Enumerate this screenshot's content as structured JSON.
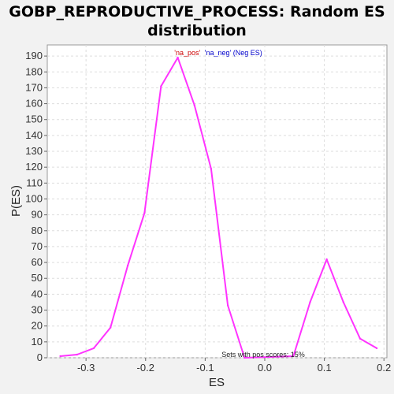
{
  "chart_data": {
    "type": "line",
    "title_line1": "GOBP_REPRODUCTIVE_PROCESS: Random ES",
    "title_line2": "distribution",
    "xlabel": "ES",
    "ylabel": "P(ES)",
    "xlim": [
      -0.365,
      0.205
    ],
    "ylim": [
      0,
      197
    ],
    "x_ticks": [
      -0.3,
      -0.2,
      -0.1,
      0.0,
      0.1,
      0.2
    ],
    "x_tick_labels": [
      "-0.3",
      "-0.2",
      "-0.1",
      "0.0",
      "0.1",
      "0.2"
    ],
    "y_ticks": [
      0,
      10,
      20,
      30,
      40,
      50,
      60,
      70,
      80,
      90,
      100,
      110,
      120,
      130,
      140,
      150,
      160,
      170,
      180,
      190
    ],
    "grid": true,
    "legend": {
      "placement": "top-center",
      "pos_label": "'na_pos'",
      "neg_label": "'na_neg' (Neg ES)",
      "pos_color": "#cc0000",
      "neg_color": "#0000cc"
    },
    "annotation": "Sets with pos scores: 15%",
    "line_color": "#ff33ff",
    "series": [
      {
        "x": [
          -0.343,
          -0.315,
          -0.287,
          -0.259,
          -0.23,
          -0.202,
          -0.174,
          -0.146,
          -0.118,
          -0.09,
          -0.062,
          -0.034,
          0.048,
          0.076,
          0.104,
          0.132,
          0.16,
          0.188
        ],
        "y": [
          1,
          2,
          6,
          19,
          58,
          91,
          171,
          189,
          159,
          119,
          33,
          0,
          1,
          35,
          62,
          35,
          12,
          6
        ]
      }
    ]
  }
}
